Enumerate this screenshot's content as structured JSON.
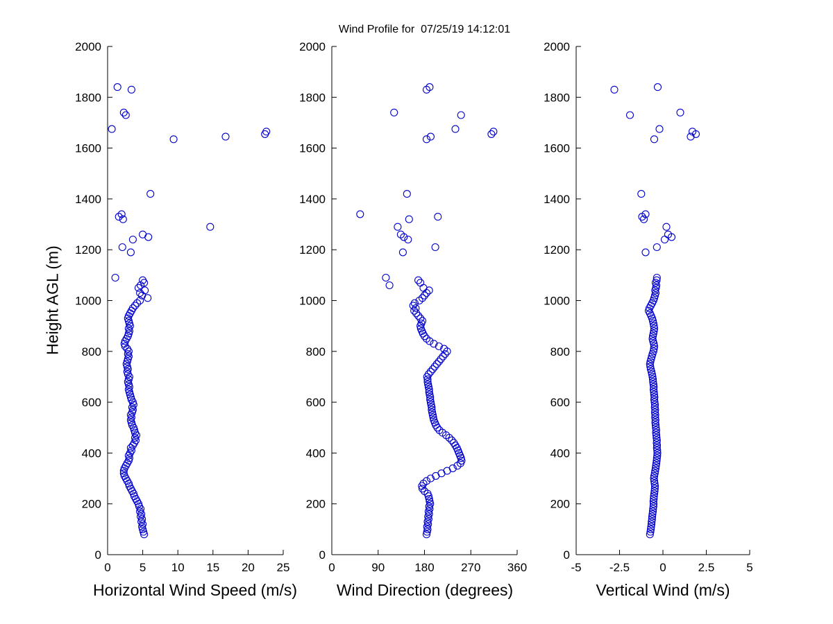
{
  "chart_data": {
    "type": "scatter",
    "title": "Wind Profile for  07/25/19 14:12:01",
    "ylabel": "Height AGL (m)",
    "ylim": [
      0,
      2000
    ],
    "yticks": [
      0,
      200,
      400,
      600,
      800,
      1000,
      1200,
      1400,
      1600,
      1800,
      2000
    ],
    "grid": false,
    "legend": "none",
    "marker": {
      "shape": "circle-open",
      "color": "#0000cc",
      "radius": 5
    },
    "heights": [
      80,
      90,
      100,
      110,
      120,
      130,
      140,
      150,
      160,
      170,
      180,
      190,
      200,
      210,
      220,
      230,
      240,
      250,
      260,
      270,
      280,
      290,
      300,
      310,
      320,
      330,
      340,
      350,
      360,
      370,
      380,
      390,
      400,
      410,
      420,
      430,
      440,
      450,
      460,
      470,
      480,
      490,
      500,
      510,
      520,
      530,
      540,
      550,
      560,
      570,
      580,
      590,
      600,
      610,
      620,
      630,
      640,
      650,
      660,
      670,
      680,
      690,
      700,
      710,
      720,
      730,
      740,
      750,
      760,
      770,
      780,
      790,
      800,
      810,
      820,
      830,
      840,
      850,
      860,
      870,
      880,
      890,
      900,
      910,
      920,
      930,
      940,
      950,
      960,
      970,
      980,
      990,
      1000,
      1010,
      1020,
      1030,
      1040,
      1050,
      1060,
      1070,
      1080,
      1090,
      1190,
      1210,
      1240,
      1250,
      1260,
      1290,
      1320,
      1330,
      1340,
      1420,
      1635,
      1645,
      1655,
      1665,
      1675,
      1730,
      1740,
      1830,
      1840
    ],
    "panels": [
      {
        "name": "horizontal-wind-speed",
        "xlabel": "Horizontal Wind Speed (m/s)",
        "xlim": [
          0,
          25
        ],
        "xticks": [
          0,
          5,
          10,
          15,
          20,
          25
        ],
        "values": [
          5.2,
          5.1,
          5.0,
          4.9,
          5.0,
          4.8,
          4.9,
          4.7,
          4.8,
          4.6,
          4.7,
          4.5,
          4.4,
          4.2,
          4.0,
          3.8,
          3.7,
          3.5,
          3.3,
          3.1,
          3.0,
          2.8,
          2.6,
          2.4,
          2.3,
          2.3,
          2.4,
          2.6,
          2.8,
          3.0,
          3.1,
          3.0,
          3.2,
          3.4,
          3.3,
          3.6,
          3.8,
          4.0,
          3.9,
          4.1,
          3.9,
          3.8,
          3.7,
          3.5,
          3.4,
          3.3,
          3.4,
          3.3,
          3.5,
          3.6,
          3.5,
          3.7,
          3.6,
          3.4,
          3.3,
          3.2,
          3.1,
          3.0,
          3.1,
          3.0,
          2.9,
          3.0,
          3.1,
          2.9,
          2.8,
          2.9,
          2.8,
          2.7,
          2.8,
          2.9,
          3.0,
          2.9,
          3.0,
          2.8,
          2.5,
          2.4,
          2.5,
          2.7,
          2.9,
          3.0,
          3.1,
          3.0,
          3.2,
          3.1,
          3.0,
          2.9,
          3.0,
          3.2,
          3.4,
          3.6,
          3.9,
          4.2,
          4.6,
          5.7,
          4.9,
          4.6,
          5.3,
          4.4,
          4.7,
          5.2,
          5.0,
          1.1,
          3.3,
          2.1,
          3.6,
          5.8,
          5.0,
          14.6,
          2.2,
          1.6,
          2.0,
          6.1,
          9.4,
          16.8,
          22.4,
          22.6,
          0.6,
          2.6,
          2.3,
          3.4,
          1.4
        ]
      },
      {
        "name": "wind-direction",
        "xlabel": "Wind Direction (degrees)",
        "xlim": [
          0,
          360
        ],
        "xticks": [
          0,
          90,
          180,
          270,
          360
        ],
        "values": [
          184,
          185,
          186,
          185,
          187,
          186,
          188,
          187,
          189,
          188,
          190,
          189,
          191,
          190,
          189,
          188,
          186,
          180,
          176,
          175,
          178,
          184,
          192,
          202,
          213,
          224,
          235,
          244,
          250,
          252,
          251,
          249,
          247,
          245,
          243,
          240,
          237,
          233,
          228,
          222,
          215,
          209,
          205,
          202,
          200,
          198,
          197,
          196,
          195,
          194,
          194,
          193,
          192,
          191,
          191,
          190,
          189,
          189,
          188,
          187,
          186,
          186,
          185,
          188,
          192,
          196,
          200,
          204,
          208,
          212,
          216,
          220,
          224,
          218,
          208,
          198,
          190,
          184,
          180,
          177,
          175,
          173,
          172,
          174,
          176,
          172,
          168,
          164,
          160,
          163,
          158,
          161,
          170,
          176,
          180,
          184,
          189,
          178,
          112,
          172,
          168,
          105,
          138,
          201,
          148,
          140,
          134,
          128,
          150,
          206,
          55,
          146,
          184,
          192,
          310,
          314,
          240,
          251,
          121,
          184,
          190
        ]
      },
      {
        "name": "vertical-wind",
        "xlabel": "Vertical Wind (m/s)",
        "xlim": [
          -5,
          5
        ],
        "xticks": [
          -5,
          -2.5,
          0,
          2.5,
          5
        ],
        "values": [
          -0.75,
          -0.72,
          -0.7,
          -0.68,
          -0.66,
          -0.65,
          -0.63,
          -0.62,
          -0.6,
          -0.58,
          -0.57,
          -0.55,
          -0.54,
          -0.55,
          -0.53,
          -0.52,
          -0.5,
          -0.48,
          -0.47,
          -0.46,
          -0.48,
          -0.5,
          -0.52,
          -0.5,
          -0.47,
          -0.45,
          -0.42,
          -0.4,
          -0.38,
          -0.36,
          -0.35,
          -0.33,
          -0.32,
          -0.33,
          -0.35,
          -0.34,
          -0.36,
          -0.35,
          -0.37,
          -0.38,
          -0.4,
          -0.39,
          -0.41,
          -0.42,
          -0.44,
          -0.43,
          -0.45,
          -0.44,
          -0.46,
          -0.45,
          -0.47,
          -0.46,
          -0.48,
          -0.5,
          -0.49,
          -0.51,
          -0.52,
          -0.54,
          -0.53,
          -0.55,
          -0.57,
          -0.58,
          -0.6,
          -0.63,
          -0.66,
          -0.7,
          -0.73,
          -0.75,
          -0.72,
          -0.68,
          -0.64,
          -0.6,
          -0.55,
          -0.52,
          -0.5,
          -0.53,
          -0.57,
          -0.6,
          -0.58,
          -0.55,
          -0.52,
          -0.5,
          -0.52,
          -0.55,
          -0.58,
          -0.62,
          -0.68,
          -0.75,
          -0.82,
          -0.78,
          -0.7,
          -0.62,
          -0.55,
          -0.5,
          -0.46,
          -0.42,
          -0.45,
          -0.4,
          -0.38,
          -0.42,
          -0.36,
          -0.35,
          -1.0,
          -0.35,
          0.1,
          0.5,
          0.3,
          0.2,
          -1.1,
          -1.2,
          -1.0,
          -1.25,
          -0.5,
          1.6,
          1.9,
          1.7,
          -0.2,
          -1.9,
          1.0,
          -2.8,
          -0.3
        ]
      }
    ]
  }
}
